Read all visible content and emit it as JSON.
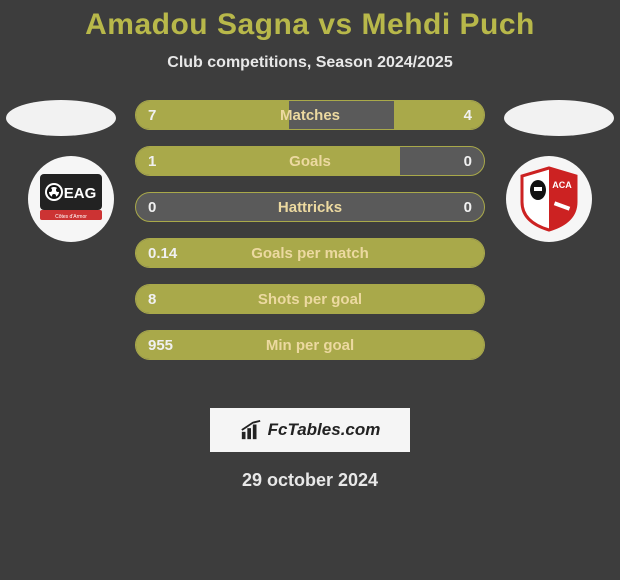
{
  "background_color": "#3d3d3d",
  "title": {
    "player1": "Amadou Sagna",
    "vs": "vs",
    "player2": "Mehdi Puch",
    "color": "#b8b84a",
    "fontsize": 30
  },
  "subtitle": {
    "text": "Club competitions, Season 2024/2025",
    "color": "#e8e8e8",
    "fontsize": 16
  },
  "clubs": {
    "left": {
      "name": "EAG",
      "bg": "#f6f6f6"
    },
    "right": {
      "name": "ACA",
      "bg": "#f6f6f6"
    }
  },
  "bar_style": {
    "track_color": "#5a5a5a",
    "fill_color": "#a9a94a",
    "border_color": "#a9a94a",
    "label_color": "#ecd9a0",
    "value_color": "#f0f0f0",
    "height": 30,
    "gap": 16,
    "radius": 15
  },
  "rows": [
    {
      "label": "Matches",
      "left": "7",
      "right": "4",
      "left_pct": 44,
      "right_pct": 26
    },
    {
      "label": "Goals",
      "left": "1",
      "right": "0",
      "left_pct": 76,
      "right_pct": 0
    },
    {
      "label": "Hattricks",
      "left": "0",
      "right": "0",
      "left_pct": 0,
      "right_pct": 0
    },
    {
      "label": "Goals per match",
      "left": "0.14",
      "right": "",
      "left_pct": 100,
      "right_pct": 0
    },
    {
      "label": "Shots per goal",
      "left": "8",
      "right": "",
      "left_pct": 100,
      "right_pct": 0
    },
    {
      "label": "Min per goal",
      "left": "955",
      "right": "",
      "left_pct": 100,
      "right_pct": 0
    }
  ],
  "brand": {
    "text": "FcTables.com"
  },
  "date": {
    "text": "29 october 2024",
    "color": "#e8e8e8",
    "fontsize": 18
  }
}
